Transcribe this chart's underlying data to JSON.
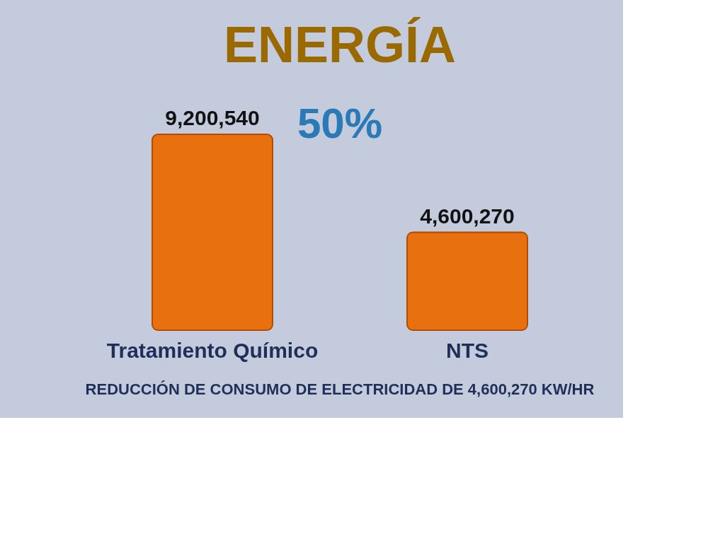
{
  "chart_data": {
    "type": "bar",
    "title": "ENERGÍA",
    "categories": [
      "Tratamiento Químico",
      "NTS"
    ],
    "values": [
      9200540,
      4600270
    ],
    "color": "#e8700f",
    "value_labels": [
      "9,200,540",
      "4,600,270"
    ],
    "grid": false,
    "annotations": [
      "50%",
      "REDUCCIÓN DE CONSUMO DE ELECTRICIDAD DE 4,600,270 KW/HR"
    ]
  }
}
